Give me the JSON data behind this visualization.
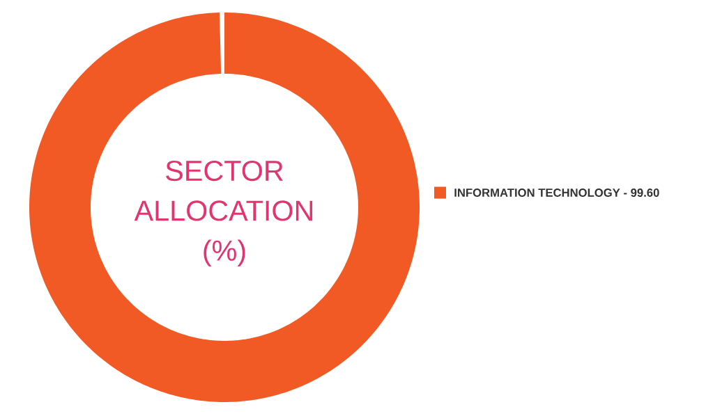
{
  "chart_data": {
    "type": "donut",
    "title": "SECTOR ALLOCATION (%)",
    "categories": [
      "INFORMATION TECHNOLOGY - 99.60"
    ],
    "values": [
      99.6
    ],
    "colors": [
      "#f15a24"
    ],
    "legend": "right"
  }
}
